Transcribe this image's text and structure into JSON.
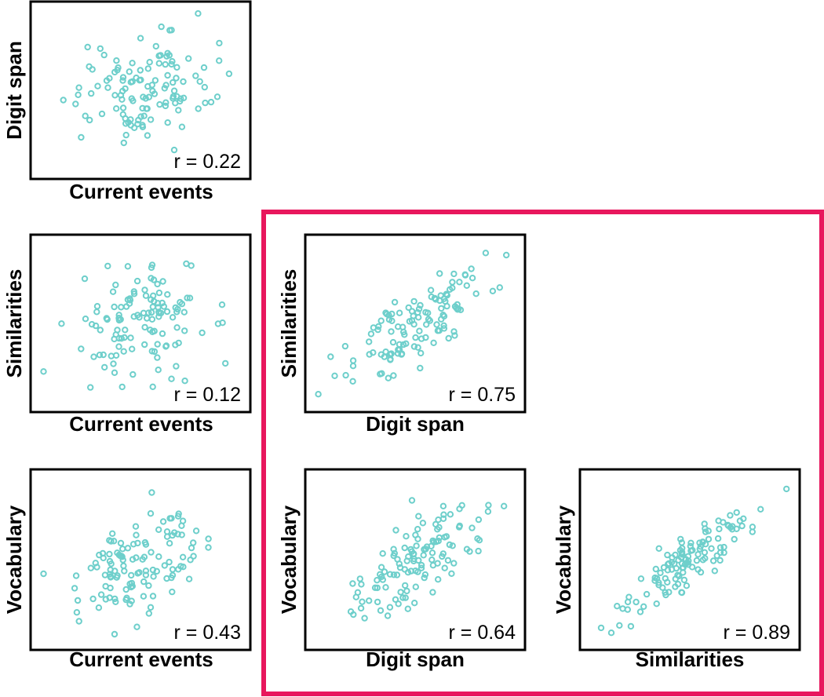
{
  "chart_data": [
    {
      "type": "scatter",
      "id": "ce-ds",
      "xlabel": "Current events",
      "ylabel": "Digit span",
      "annotation": "r = 0.22",
      "r": 0.22,
      "n": 120,
      "xlim": [
        -3,
        3
      ],
      "ylim": [
        -3,
        3
      ],
      "grid": false
    },
    {
      "type": "scatter",
      "id": "ce-sim",
      "xlabel": "Current events",
      "ylabel": "Similarities",
      "annotation": "r = 0.12",
      "r": 0.12,
      "n": 120,
      "xlim": [
        -3,
        3
      ],
      "ylim": [
        -3,
        3
      ],
      "grid": false
    },
    {
      "type": "scatter",
      "id": "ds-sim",
      "xlabel": "Digit span",
      "ylabel": "Similarities",
      "annotation": "r = 0.75",
      "r": 0.75,
      "n": 120,
      "xlim": [
        -3,
        3
      ],
      "ylim": [
        -3,
        3
      ],
      "grid": false
    },
    {
      "type": "scatter",
      "id": "ce-voc",
      "xlabel": "Current events",
      "ylabel": "Vocabulary",
      "annotation": "r = 0.43",
      "r": 0.43,
      "n": 120,
      "xlim": [
        -3,
        3
      ],
      "ylim": [
        -3,
        3
      ],
      "grid": false
    },
    {
      "type": "scatter",
      "id": "ds-voc",
      "xlabel": "Digit span",
      "ylabel": "Vocabulary",
      "annotation": "r = 0.64",
      "r": 0.64,
      "n": 120,
      "xlim": [
        -3,
        3
      ],
      "ylim": [
        -3,
        3
      ],
      "grid": false
    },
    {
      "type": "scatter",
      "id": "sim-voc",
      "xlabel": "Similarities",
      "ylabel": "Vocabulary",
      "annotation": "r = 0.89",
      "r": 0.89,
      "n": 120,
      "xlim": [
        -3,
        3
      ],
      "ylim": [
        -3,
        3
      ],
      "grid": false
    }
  ],
  "colors": {
    "points": "#6ecfcb",
    "highlight": "#e8175d",
    "frame": "#000000"
  }
}
